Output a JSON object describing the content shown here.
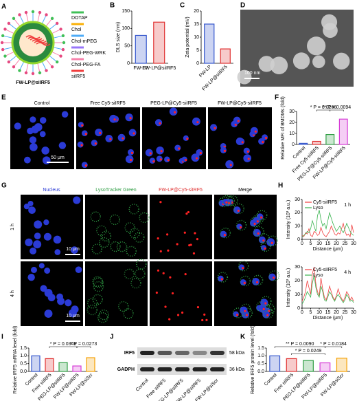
{
  "figure": {
    "panels": [
      "A",
      "B",
      "C",
      "D",
      "E",
      "F",
      "G",
      "H",
      "I",
      "J",
      "K"
    ],
    "schematic": {
      "legend": [
        "DOTAP",
        "Chol",
        "Chol-mPEG",
        "Chol-PEG-WRK",
        "Chol-PEG-FA",
        "siIRF5"
      ],
      "label": "FW-LP@siIRF5"
    },
    "tem": {
      "scale_bar": "100 nm"
    },
    "uptake_images": {
      "columns": [
        "Control",
        "Free Cy5-siIRF5",
        "PEG-LP@Cy5-siIRF5",
        "FW-LP@Cy5-siIRF5"
      ],
      "scale_bar": "50 μm"
    },
    "colocalization": {
      "columns": [
        "Nucleus",
        "LysoTracker Green",
        "FW-LP@Cy5-siIRF5",
        "Merge"
      ],
      "rows": [
        "1 h",
        "4 h"
      ],
      "scale_bars": [
        "10 μm",
        "10 μm"
      ]
    },
    "blot": {
      "bands": [
        "IRF5",
        "GADPH"
      ],
      "sizes": [
        "58 kDa",
        "36 kDa"
      ],
      "lanes": [
        "Control",
        "Free siIRF5",
        "PEG-LP@siIRF5",
        "FW-LP@siIRF5",
        "FW-LP@siScr"
      ]
    }
  },
  "chart_data": [
    {
      "type": "bar",
      "y_label": "DLS size (nm)",
      "categories": [
        "FW-LP",
        "FW-LP@siIRF5"
      ],
      "values": [
        80,
        118
      ],
      "colors": [
        "#3355cc",
        "#e03131"
      ],
      "ylim": [
        0,
        150
      ],
      "yticks": [
        0,
        50,
        100,
        150
      ]
    },
    {
      "type": "bar",
      "y_label": "Zeta potential (mV)",
      "categories": [
        "FW-LP",
        "FW-LP@siIRF5"
      ],
      "values": [
        15,
        5.5
      ],
      "colors": [
        "#3355cc",
        "#e03131"
      ],
      "ylim": [
        0,
        20
      ],
      "yticks": [
        0,
        5,
        10,
        15,
        20
      ]
    },
    {
      "type": "bar",
      "y_label": "Relative MFI of BMDMs (fold)",
      "categories": [
        "Control",
        "Free Cy5-siIRF5",
        "PEG-LP@Cy5-siIRF5",
        "FW-LP@Cy5-siIRF5"
      ],
      "values": [
        1,
        2.8,
        9,
        23
      ],
      "colors": [
        "#3355cc",
        "#e03131",
        "#2f9e44",
        "#d63bd6"
      ],
      "ylim": [
        0,
        30
      ],
      "yticks": [
        0,
        10,
        20,
        30
      ],
      "annotations": [
        "* P = 0.0266",
        "** P = 0.0094"
      ]
    },
    {
      "type": "line",
      "annotation": "1 h",
      "x_label": "Distance (μm)",
      "y_label": "Intensity (10³ a.u.)",
      "x": [
        0,
        1,
        2,
        3,
        4,
        5,
        6,
        7,
        8,
        9,
        10,
        11,
        12,
        13,
        14,
        15,
        16,
        17,
        18,
        19,
        20,
        21,
        22,
        23,
        24,
        25,
        26,
        27,
        28,
        29,
        30
      ],
      "xlim": [
        0,
        30
      ],
      "xticks": [
        0,
        5,
        10,
        15,
        20,
        25,
        30
      ],
      "ylim": [
        0,
        30
      ],
      "yticks": [
        0,
        10,
        20,
        30
      ],
      "series": [
        {
          "name": "Cy5-siIRF5",
          "color": "#f03e3e",
          "values": [
            3,
            2,
            5,
            4,
            8,
            3,
            2,
            6,
            5,
            3,
            4,
            9,
            5,
            3,
            2,
            4,
            6,
            10,
            7,
            4,
            3,
            5,
            4,
            8,
            12,
            6,
            3,
            4,
            2,
            11,
            5
          ]
        },
        {
          "name": "Lyso",
          "color": "#37b24d",
          "values": [
            2,
            3,
            4,
            6,
            5,
            8,
            14,
            10,
            6,
            18,
            22,
            15,
            10,
            12,
            8,
            14,
            20,
            16,
            12,
            9,
            6,
            8,
            10,
            7,
            5,
            8,
            12,
            9,
            6,
            4,
            3
          ]
        }
      ]
    },
    {
      "type": "line",
      "annotation": "4 h",
      "x_label": "Distance (μm)",
      "y_label": "Intensity (10³ a.u.)",
      "x": [
        0,
        1,
        2,
        3,
        4,
        5,
        6,
        7,
        8,
        9,
        10,
        11,
        12,
        13,
        14,
        15,
        16,
        17,
        18,
        19,
        20,
        21,
        22,
        23,
        24,
        25,
        26,
        27,
        28,
        29,
        30
      ],
      "xlim": [
        0,
        30
      ],
      "xticks": [
        0,
        5,
        10,
        15,
        20,
        25,
        30
      ],
      "ylim": [
        0,
        30
      ],
      "yticks": [
        0,
        10,
        20,
        30
      ],
      "series": [
        {
          "name": "Cy5-siIRF5",
          "color": "#f03e3e",
          "values": [
            5,
            8,
            12,
            20,
            15,
            10,
            25,
            30,
            18,
            12,
            9,
            22,
            14,
            8,
            6,
            10,
            16,
            12,
            8,
            6,
            9,
            14,
            10,
            7,
            5,
            8,
            12,
            10,
            6,
            8,
            5
          ]
        },
        {
          "name": "Lyso",
          "color": "#37b24d",
          "values": [
            3,
            5,
            8,
            12,
            10,
            8,
            18,
            24,
            15,
            10,
            8,
            16,
            12,
            6,
            5,
            8,
            12,
            10,
            7,
            5,
            8,
            10,
            8,
            6,
            4,
            6,
            10,
            8,
            5,
            6,
            4
          ]
        }
      ]
    },
    {
      "type": "bar",
      "y_label": "Relative IRF5 mRNA level (fold)",
      "categories": [
        "Control",
        "Free siIRF5",
        "PEG-LP@siIRF5",
        "FW-LP@siIRF5",
        "FW-LP@siScr"
      ],
      "values": [
        1.0,
        0.82,
        0.57,
        0.35,
        0.88
      ],
      "colors": [
        "#3355cc",
        "#e03131",
        "#2f9e44",
        "#d63bd6",
        "#f59f00"
      ],
      "ylim": [
        0,
        1.5
      ],
      "yticks": [
        {
          "value": 0,
          "label": "0.0"
        },
        0.5,
        {
          "value": 1,
          "label": "1.0"
        },
        1.5
      ],
      "annotations": [
        "* P = 0.0349",
        "* P = 0.0273"
      ]
    },
    {
      "type": "bar",
      "y_label": "Relative IRF5 protein level (fold)",
      "categories": [
        "Control",
        "Free siIRF5",
        "PEG-LP@siIRF5",
        "FW-LP@siIRF5",
        "FW-LP@siScr"
      ],
      "values": [
        1.0,
        0.82,
        0.7,
        0.55,
        0.85
      ],
      "colors": [
        "#3355cc",
        "#e03131",
        "#2f9e44",
        "#d63bd6",
        "#f59f00"
      ],
      "ylim": [
        0,
        1.5
      ],
      "yticks": [
        {
          "value": 0,
          "label": "0.0"
        },
        0.5,
        {
          "value": 1,
          "label": "1.0"
        },
        1.5
      ],
      "annotations": [
        "** P = 0.0090",
        "* P = 0.0184",
        "* P = 0.0249"
      ]
    }
  ]
}
